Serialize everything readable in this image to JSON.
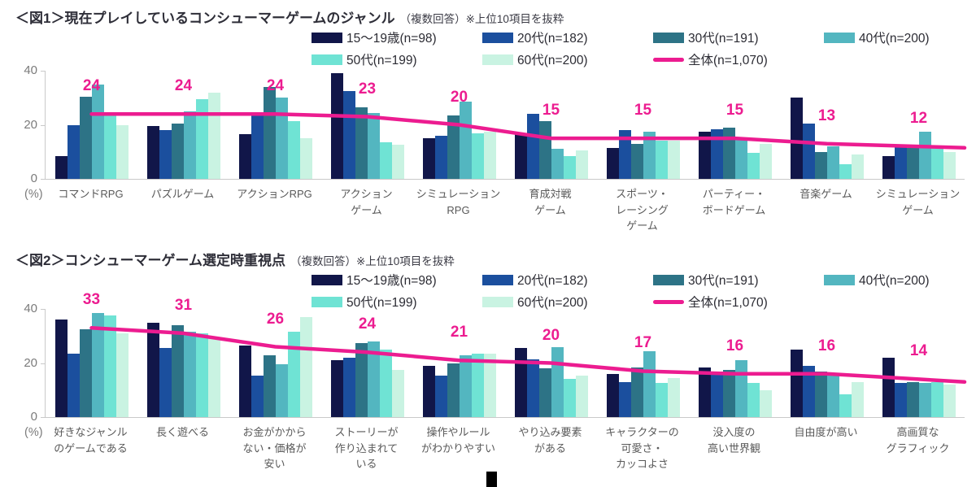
{
  "chart_data": [
    {
      "type": "bar+line",
      "title": "＜図1＞現在プレイしているコンシューマーゲームのジャンル",
      "subtitle": "（複数回答）※上位10項目を抜粋",
      "unit": "(%)",
      "ylim": [
        0,
        40
      ],
      "yticks": [
        40,
        20,
        0
      ],
      "grid": "off",
      "legend_position": "top",
      "categories": [
        "コマンドRPG",
        "パズルゲーム",
        "アクションRPG",
        "アクション\nゲーム",
        "シミュレーション\nRPG",
        "育成対戦\nゲーム",
        "スポーツ・\nレーシング\nゲーム",
        "パーティー・\nボードゲーム",
        "音楽ゲーム",
        "シミュレーション\nゲーム"
      ],
      "series": [
        {
          "key": "age15-19",
          "name": "15〜19歳(n=98)",
          "color": "#111649",
          "values": [
            8.5,
            19.5,
            16.5,
            39,
            15,
            17,
            11.5,
            17.5,
            30,
            8.5
          ]
        },
        {
          "key": "age20s",
          "name": "20代(n=182)",
          "color": "#1b4f9e",
          "values": [
            20,
            18,
            23.5,
            32.5,
            16,
            24,
            18,
            18.5,
            20.5,
            12
          ]
        },
        {
          "key": "age30s",
          "name": "30代(n=191)",
          "color": "#2d7386",
          "values": [
            30.5,
            20.5,
            34,
            26.5,
            23.5,
            21.5,
            13,
            19,
            10,
            11.5
          ]
        },
        {
          "key": "age40s",
          "name": "40代(n=200)",
          "color": "#53b6c0",
          "values": [
            35,
            25,
            30,
            24.5,
            28.5,
            11,
            17.5,
            14.5,
            12,
            17.5
          ]
        },
        {
          "key": "age50s",
          "name": "50代(n=199)",
          "color": "#6fe3d4",
          "values": [
            24,
            29.5,
            21.5,
            13.5,
            17,
            8.5,
            14,
            9.5,
            5.5,
            11.5
          ]
        },
        {
          "key": "age60s",
          "name": "60代(n=200)",
          "color": "#c9f3e2",
          "values": [
            20,
            32,
            15,
            12.5,
            17.5,
            10.5,
            14,
            13,
            9,
            10
          ]
        }
      ],
      "line_series": {
        "key": "total",
        "name": "全体(n=1,070)",
        "color": "#ec1c90",
        "values": [
          24,
          24,
          24,
          23,
          20,
          15,
          15,
          15,
          13,
          12
        ]
      }
    },
    {
      "type": "bar+line",
      "title": "＜図2＞コンシューマーゲーム選定時重視点",
      "subtitle": "（複数回答）※上位10項目を抜粋",
      "unit": "(%)",
      "ylim": [
        0,
        40
      ],
      "yticks": [
        40,
        20,
        0
      ],
      "grid": "off",
      "legend_position": "top",
      "categories": [
        "好きなジャンル\nのゲームである",
        "長く遊べる",
        "お金がかから\nない・価格が\n安い",
        "ストーリーが\n作り込まれて\nいる",
        "操作やルール\nがわかりやすい",
        "やり込み要素\nがある",
        "キャラクターの\n可愛さ・\nカッコよさ",
        "没入度の\n高い世界観",
        "自由度が高い",
        "高画質な\nグラフィック"
      ],
      "series": [
        {
          "key": "age15-19",
          "name": "15〜19歳(n=98)",
          "color": "#111649",
          "values": [
            36,
            35,
            26.5,
            21,
            19,
            25.5,
            16,
            18.5,
            25,
            22
          ]
        },
        {
          "key": "age20s",
          "name": "20代(n=182)",
          "color": "#1b4f9e",
          "values": [
            23.5,
            25.5,
            15.5,
            22,
            15.5,
            21.5,
            13,
            17,
            19,
            12.5
          ]
        },
        {
          "key": "age30s",
          "name": "30代(n=191)",
          "color": "#2d7386",
          "values": [
            32.5,
            34,
            23,
            27.5,
            20,
            18,
            18.5,
            17.5,
            17,
            13
          ]
        },
        {
          "key": "age40s",
          "name": "40代(n=200)",
          "color": "#53b6c0",
          "values": [
            38.5,
            31.5,
            19.5,
            28,
            23,
            26,
            24.5,
            21,
            15.5,
            12.5
          ]
        },
        {
          "key": "age50s",
          "name": "50代(n=199)",
          "color": "#6fe3d4",
          "values": [
            37.5,
            31,
            31.5,
            25,
            23.5,
            14,
            12.5,
            12.5,
            8.5,
            13
          ]
        },
        {
          "key": "age60s",
          "name": "60代(n=200)",
          "color": "#c9f3e2",
          "values": [
            31,
            29.5,
            37,
            17.5,
            23.5,
            15.5,
            14.5,
            10,
            13,
            12
          ]
        }
      ],
      "line_series": {
        "key": "total",
        "name": "全体(n=1,070)",
        "color": "#ec1c90",
        "values": [
          33,
          31,
          26,
          24,
          21,
          20,
          17,
          16,
          16,
          14
        ]
      }
    }
  ]
}
